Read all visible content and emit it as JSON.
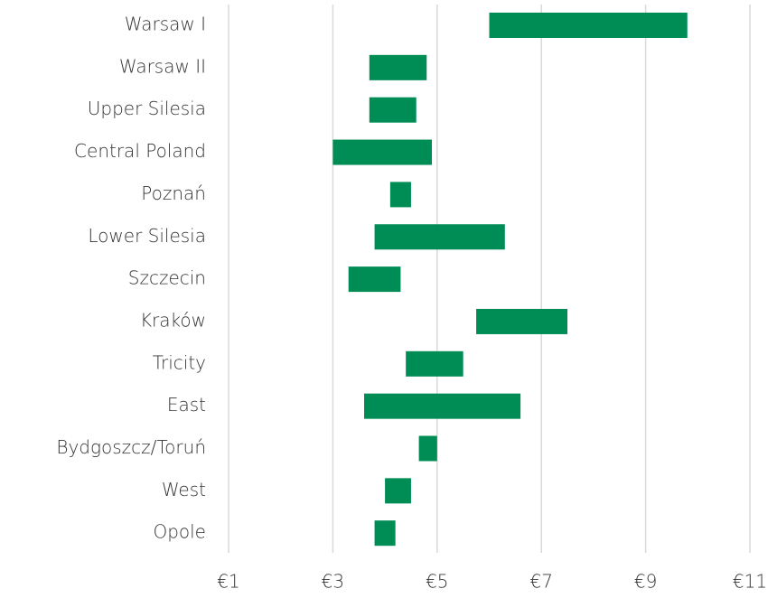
{
  "chart_data": {
    "type": "range-bar",
    "categories": [
      "Warsaw I",
      "Warsaw II",
      "Upper Silesia",
      "Central Poland",
      "Poznań",
      "Lower Silesia",
      "Szczecin",
      "Kraków",
      "Tricity",
      "East",
      "Bydgoszcz/Toruń",
      "West",
      "Opole"
    ],
    "low": [
      6.0,
      3.7,
      3.7,
      3.0,
      4.1,
      3.8,
      3.3,
      5.75,
      4.4,
      3.6,
      4.65,
      4.0,
      3.8
    ],
    "high": [
      9.8,
      4.8,
      4.6,
      4.9,
      4.5,
      6.3,
      4.3,
      7.5,
      5.5,
      6.6,
      5.0,
      4.5,
      4.2
    ],
    "color": "#008c55",
    "xlim": [
      1,
      11
    ],
    "xticks": [
      {
        "value": 1,
        "label": "€1"
      },
      {
        "value": 3,
        "label": "€3"
      },
      {
        "value": 5,
        "label": "€5"
      },
      {
        "value": 7,
        "label": "€7"
      },
      {
        "value": 9,
        "label": "€9"
      },
      {
        "value": 11,
        "label": "€11"
      }
    ],
    "grid": true
  }
}
